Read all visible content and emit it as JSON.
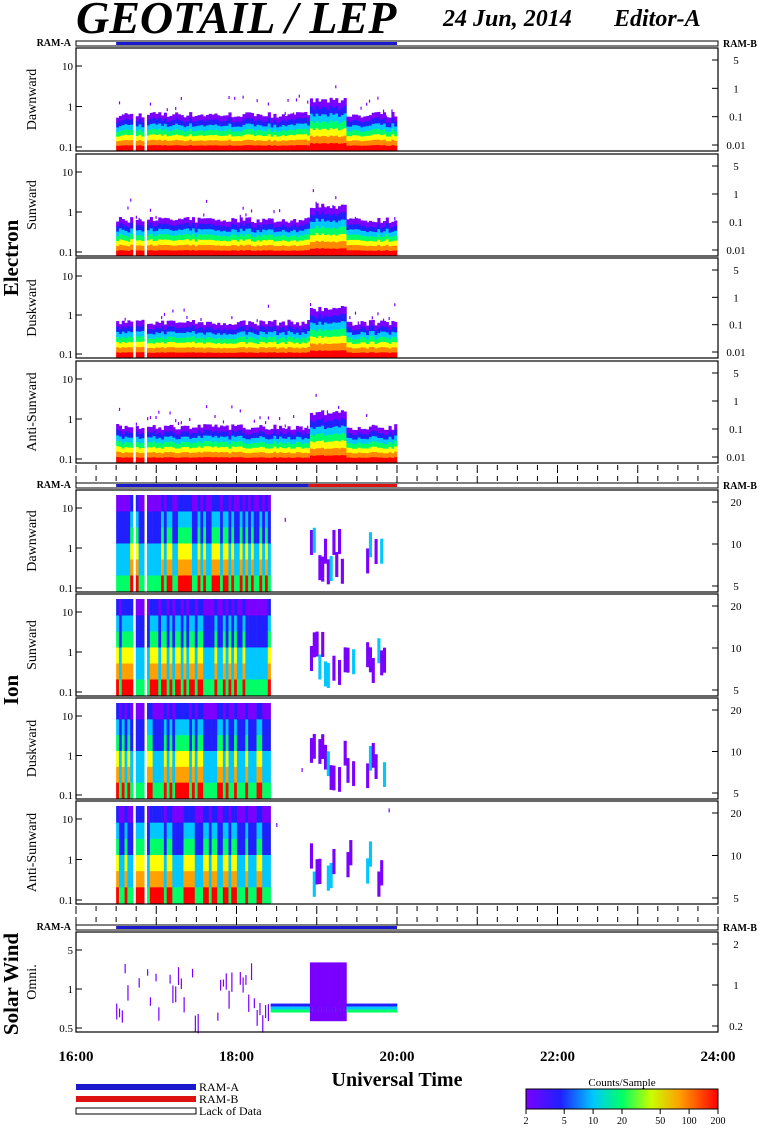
{
  "header": {
    "title": "GEOTAIL / LEP",
    "date": "24 Jun, 2014",
    "editor": "Editor-A"
  },
  "labels": {
    "ram_a": "RAM-A",
    "ram_b": "RAM-B",
    "group_electron": "Electron",
    "group_ion": "Ion",
    "group_solarwind": "Solar Wind"
  },
  "panels": {
    "electron": [
      "Dawnward",
      "Sunward",
      "Duskward",
      "Anti-Sunward"
    ],
    "ion": [
      "Dawnward",
      "Sunward",
      "Duskward",
      "Anti-Sunward"
    ],
    "solarwind": [
      "Omni."
    ]
  },
  "axes": {
    "left_electron_ion": [
      "10",
      "1",
      "0.1"
    ],
    "right_electron": [
      "5",
      "1",
      "0.1",
      "0.01"
    ],
    "right_ion": [
      "20",
      "10",
      "5"
    ],
    "left_solarwind": [
      "5",
      "1",
      "0.5"
    ],
    "right_solarwind": [
      "2",
      "1",
      "0.2"
    ],
    "x_ticks": [
      "16:00",
      "18:00",
      "20:00",
      "22:00",
      "24:00"
    ],
    "x_title": "Universal Time"
  },
  "legend": {
    "items": [
      "RAM-A",
      "RAM-B",
      "Lack of Data"
    ],
    "colors": [
      "#1a1acc",
      "#dd1111",
      "#ffffff"
    ]
  },
  "colorbar": {
    "title": "Counts/Sample",
    "ticks": [
      "2",
      "5",
      "10",
      "20",
      "50",
      "100",
      "200"
    ]
  },
  "chart_data": {
    "type": "heatmap",
    "title": "GEOTAIL / LEP",
    "xlabel": "Universal Time",
    "x_range_hours": [
      16,
      24
    ],
    "data_coverage_hours": [
      16.5,
      20.0
    ],
    "ram_bar_electron": [
      {
        "from": 16.5,
        "to": 20.0,
        "mode": "RAM-A"
      }
    ],
    "ram_bar_ion": [
      {
        "from": 16.5,
        "to": 18.9,
        "mode": "RAM-A"
      },
      {
        "from": 18.9,
        "to": 20.0,
        "mode": "RAM-B"
      }
    ],
    "ram_bar_solarwind": [
      {
        "from": 16.5,
        "to": 20.0,
        "mode": "RAM-A"
      }
    ],
    "colorscale_range_counts": [
      2,
      200
    ]
  }
}
